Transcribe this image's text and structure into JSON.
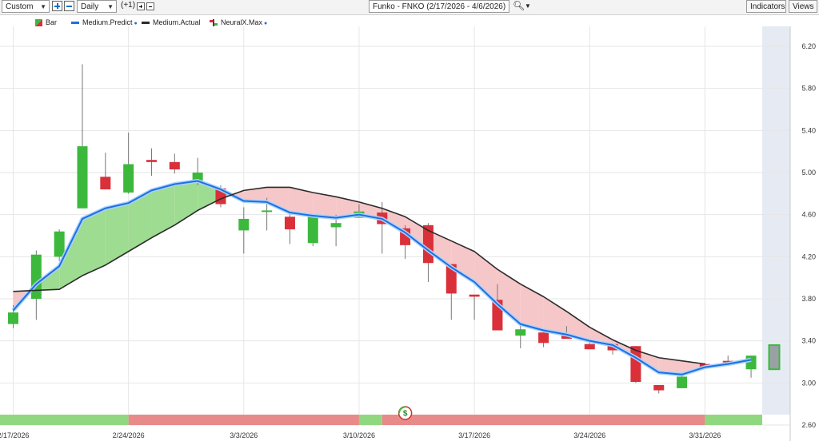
{
  "toolbar": {
    "range_select": "Custom",
    "interval_select": "Daily",
    "step_label": "(+1)",
    "title_field": "Funko - FNKO (2/17/2026 - 4/6/2026)",
    "indicators_label": "Indicators",
    "views_label": "Views",
    "icons": [
      "zoom-in-icon",
      "zoom-out-icon",
      "search-icon",
      "dropdown-arrow-icon"
    ]
  },
  "legend": [
    {
      "label": "Bar",
      "icon": "bar-icon"
    },
    {
      "label": "Medium.Predict",
      "color": "#1e6fe0"
    },
    {
      "label": "Medium.Actual",
      "color": "#2b2b2b"
    },
    {
      "label": "NeuralX.Max",
      "icon": "neuralx-icon"
    }
  ],
  "colors": {
    "up": "#3cb93c",
    "down": "#d9303a",
    "predict": "#1e6fe0",
    "actual": "#2b2b2b",
    "fill_up": "#9edc91",
    "fill_down": "#f6c7c8",
    "strip_up": "#90d880",
    "strip_down": "#e88a8a",
    "grid": "#e6e6e6",
    "future_band": "#e6ebf3"
  },
  "chart_data": {
    "type": "candlestick",
    "title": "Funko - FNKO (2/17/2026 - 4/6/2026)",
    "y_ticks": [
      "6.20",
      "5.80",
      "5.40",
      "5.00",
      "4.60",
      "4.20",
      "3.80",
      "3.40",
      "3.00",
      "2.60"
    ],
    "ylim": [
      2.6,
      6.38
    ],
    "x_tick_labels": [
      {
        "label": "2/17/2026",
        "index": 0
      },
      {
        "label": "2/24/2026",
        "index": 5
      },
      {
        "label": "3/3/2026",
        "index": 10
      },
      {
        "label": "3/10/2026",
        "index": 15
      },
      {
        "label": "3/17/2026",
        "index": 20
      },
      {
        "label": "3/24/2026",
        "index": 25
      },
      {
        "label": "3/31/2026",
        "index": 30
      }
    ],
    "candles": [
      {
        "o": 3.56,
        "h": 3.74,
        "l": 3.52,
        "c": 3.67
      },
      {
        "o": 3.8,
        "h": 4.26,
        "l": 3.6,
        "c": 4.22
      },
      {
        "o": 4.2,
        "h": 4.46,
        "l": 4.16,
        "c": 4.44
      },
      {
        "o": 4.66,
        "h": 6.03,
        "l": 4.66,
        "c": 5.25
      },
      {
        "o": 4.96,
        "h": 5.19,
        "l": 4.84,
        "c": 4.84
      },
      {
        "o": 4.81,
        "h": 5.38,
        "l": 4.8,
        "c": 5.08
      },
      {
        "o": 5.12,
        "h": 5.23,
        "l": 4.97,
        "c": 5.1
      },
      {
        "o": 5.1,
        "h": 5.18,
        "l": 4.99,
        "c": 5.03
      },
      {
        "o": 4.92,
        "h": 5.14,
        "l": 4.88,
        "c": 5.0
      },
      {
        "o": 4.85,
        "h": 4.88,
        "l": 4.67,
        "c": 4.7
      },
      {
        "o": 4.45,
        "h": 4.67,
        "l": 4.23,
        "c": 4.56
      },
      {
        "o": 4.63,
        "h": 4.76,
        "l": 4.45,
        "c": 4.64
      },
      {
        "o": 4.58,
        "h": 4.6,
        "l": 4.32,
        "c": 4.46
      },
      {
        "o": 4.33,
        "h": 4.6,
        "l": 4.3,
        "c": 4.58
      },
      {
        "o": 4.48,
        "h": 4.6,
        "l": 4.3,
        "c": 4.52
      },
      {
        "o": 4.57,
        "h": 4.7,
        "l": 4.57,
        "c": 4.63
      },
      {
        "o": 4.62,
        "h": 4.72,
        "l": 4.23,
        "c": 4.51
      },
      {
        "o": 4.47,
        "h": 4.5,
        "l": 4.18,
        "c": 4.31
      },
      {
        "o": 4.5,
        "h": 4.52,
        "l": 3.96,
        "c": 4.14
      },
      {
        "o": 4.13,
        "h": 4.13,
        "l": 3.6,
        "c": 3.85
      },
      {
        "o": 3.84,
        "h": 3.84,
        "l": 3.6,
        "c": 3.82
      },
      {
        "o": 3.79,
        "h": 3.94,
        "l": 3.5,
        "c": 3.5
      },
      {
        "o": 3.45,
        "h": 3.56,
        "l": 3.33,
        "c": 3.51
      },
      {
        "o": 3.48,
        "h": 3.48,
        "l": 3.34,
        "c": 3.38
      },
      {
        "o": 3.45,
        "h": 3.54,
        "l": 3.42,
        "c": 3.42
      },
      {
        "o": 3.37,
        "h": 3.39,
        "l": 3.32,
        "c": 3.32
      },
      {
        "o": 3.37,
        "h": 3.38,
        "l": 3.27,
        "c": 3.31
      },
      {
        "o": 3.35,
        "h": 3.35,
        "l": 3.0,
        "c": 3.01
      },
      {
        "o": 2.98,
        "h": 2.98,
        "l": 2.9,
        "c": 2.93
      },
      {
        "o": 2.95,
        "h": 3.08,
        "l": 2.95,
        "c": 3.06
      },
      {
        "o": 3.18,
        "h": 3.19,
        "l": 3.15,
        "c": 3.15
      },
      {
        "o": 3.21,
        "h": 3.26,
        "l": 3.19,
        "c": 3.2
      },
      {
        "o": 3.13,
        "h": 3.26,
        "l": 3.05,
        "c": 3.26
      }
    ],
    "forecast_candle": {
      "o": 3.13,
      "h": 3.36,
      "l": 3.13,
      "c": 3.36
    },
    "medium_predict": [
      3.69,
      3.94,
      4.11,
      4.56,
      4.66,
      4.71,
      4.83,
      4.89,
      4.92,
      4.84,
      4.73,
      4.72,
      4.62,
      4.59,
      4.57,
      4.6,
      4.56,
      4.43,
      4.26,
      4.1,
      3.96,
      3.75,
      3.56,
      3.5,
      3.46,
      3.4,
      3.36,
      3.24,
      3.1,
      3.08,
      3.15,
      3.18,
      3.22
    ],
    "medium_actual": [
      3.87,
      3.88,
      3.89,
      4.02,
      4.12,
      4.25,
      4.38,
      4.5,
      4.64,
      4.75,
      4.83,
      4.86,
      4.86,
      4.81,
      4.77,
      4.72,
      4.66,
      4.58,
      4.45,
      4.35,
      4.25,
      4.08,
      3.94,
      3.82,
      3.68,
      3.53,
      3.41,
      3.31,
      3.24,
      3.21,
      3.18
    ],
    "signal_strip": [
      {
        "from": 0,
        "to": 5,
        "state": "up"
      },
      {
        "from": 5,
        "to": 15,
        "state": "down"
      },
      {
        "from": 15,
        "to": 16,
        "state": "up"
      },
      {
        "from": 16,
        "to": 30,
        "state": "down"
      },
      {
        "from": 30,
        "to": 32,
        "state": "up"
      }
    ],
    "strip_marker": {
      "index": 17,
      "symbol": "$"
    }
  }
}
